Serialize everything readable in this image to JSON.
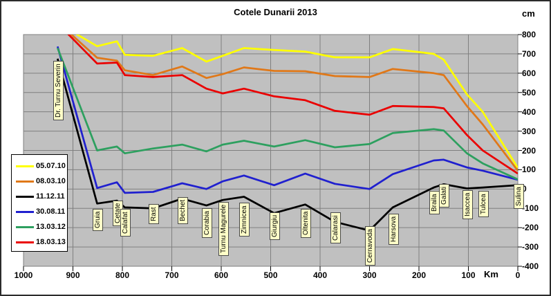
{
  "chart_data": {
    "type": "line",
    "title": "Cotele Dunarii 2013",
    "y_unit": "cm",
    "x_unit": "Km",
    "xlim": [
      1000,
      0
    ],
    "ylim": [
      -400,
      800
    ],
    "x_ticks": [
      1000,
      900,
      800,
      700,
      600,
      500,
      400,
      300,
      200,
      100,
      0
    ],
    "y_ticks": [
      800,
      700,
      600,
      500,
      400,
      300,
      200,
      100,
      0,
      -100,
      -200,
      -300,
      -400
    ],
    "grid": true,
    "legend_position": "middle-left",
    "plot_bg_color": "#C0C0C0",
    "grid_color": "#7f7f7f",
    "station_label_bg": "#FFFFC8",
    "stations": [
      {
        "name": "Dr. Turnu Severin",
        "km": 931,
        "label_bottom": 172
      },
      {
        "name": "Gruia",
        "km": 851,
        "label_bottom": 332
      },
      {
        "name": "Cetate",
        "km": 811,
        "label_bottom": 325
      },
      {
        "name": "Calafat",
        "km": 795,
        "label_bottom": 340
      },
      {
        "name": "Rast",
        "km": 738,
        "label_bottom": 322
      },
      {
        "name": "Bechet",
        "km": 679,
        "label_bottom": 322
      },
      {
        "name": "Corabia",
        "km": 630,
        "label_bottom": 342
      },
      {
        "name": "Turnu Magurele",
        "km": 597,
        "label_bottom": 368
      },
      {
        "name": "Zimnicea",
        "km": 554,
        "label_bottom": 340
      },
      {
        "name": "Giurgiu",
        "km": 493,
        "label_bottom": 345
      },
      {
        "name": "Oltenita",
        "km": 430,
        "label_bottom": 342
      },
      {
        "name": "Calarasi",
        "km": 370,
        "label_bottom": 350
      },
      {
        "name": "Cernavoda",
        "km": 300,
        "label_bottom": 382
      },
      {
        "name": "Harsova",
        "km": 253,
        "label_bottom": 352
      },
      {
        "name": "Braila",
        "km": 170,
        "label_bottom": 308
      },
      {
        "name": "Galati",
        "km": 150,
        "label_bottom": 298
      },
      {
        "name": "Isaccea",
        "km": 103,
        "label_bottom": 315
      },
      {
        "name": "Tulcea",
        "km": 71,
        "label_bottom": 312
      },
      {
        "name": "Sulina",
        "km": 0,
        "label_bottom": 300
      }
    ],
    "series": [
      {
        "name": "05.07.10",
        "color": "#FFFF00",
        "values": [
          860,
          740,
          765,
          695,
          690,
          730,
          660,
          690,
          730,
          720,
          712,
          682,
          682,
          725,
          700,
          670,
          490,
          400,
          110
        ]
      },
      {
        "name": "08.03.10",
        "color": "#E07818",
        "values": [
          865,
          680,
          665,
          615,
          590,
          635,
          575,
          595,
          630,
          612,
          610,
          585,
          580,
          622,
          600,
          590,
          430,
          335,
          95
        ]
      },
      {
        "name": "11.12.11",
        "color": "#000000",
        "values": [
          675,
          -75,
          -60,
          -95,
          -100,
          -50,
          -85,
          -57,
          -40,
          -125,
          -80,
          -170,
          -215,
          -95,
          8,
          25,
          3,
          8,
          20
        ]
      },
      {
        "name": "30.08.11",
        "color": "#2020CF",
        "values": [
          738,
          5,
          35,
          -20,
          -15,
          30,
          0,
          40,
          70,
          20,
          80,
          27,
          0,
          77,
          148,
          152,
          112,
          95,
          48
        ]
      },
      {
        "name": "13.03.12",
        "color": "#2DA05F",
        "values": [
          730,
          200,
          220,
          185,
          210,
          230,
          195,
          230,
          250,
          220,
          253,
          216,
          233,
          290,
          310,
          303,
          185,
          133,
          50
        ]
      },
      {
        "name": "18.03.13",
        "color": "#EA0000",
        "values": [
          858,
          650,
          655,
          590,
          580,
          590,
          520,
          495,
          520,
          480,
          460,
          405,
          385,
          430,
          425,
          418,
          280,
          200,
          80
        ]
      }
    ]
  }
}
